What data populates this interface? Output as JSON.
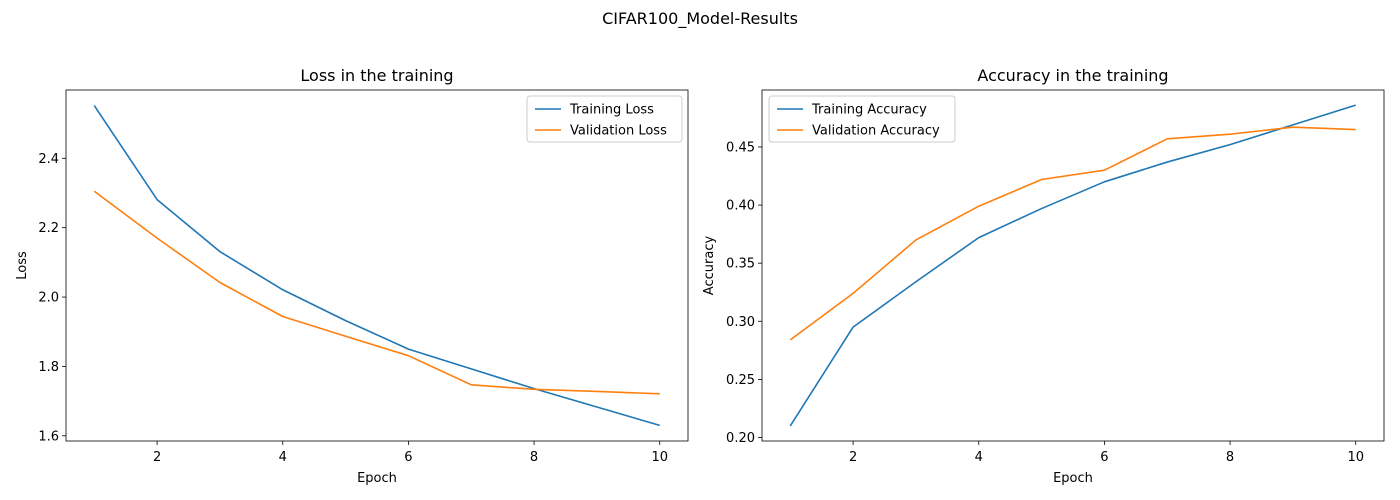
{
  "figure": {
    "title": "CIFAR100_Model-Results",
    "colors": {
      "train": "#1f77b4",
      "val": "#ff7f0e"
    }
  },
  "chart_data": [
    {
      "type": "line",
      "title": "Loss in the training",
      "xlabel": "Epoch",
      "ylabel": "Loss",
      "x": [
        1,
        2,
        3,
        4,
        5,
        6,
        7,
        8,
        9,
        10
      ],
      "xlim": [
        0.55,
        10.45
      ],
      "ylim": [
        1.585,
        2.597
      ],
      "xticks": [
        2,
        4,
        6,
        8,
        10
      ],
      "yticks": [
        1.6,
        1.8,
        2.0,
        2.2,
        2.4
      ],
      "ytick_decimals": 1,
      "legend": "top-right",
      "grid": false,
      "series": [
        {
          "name": "Training Loss",
          "color": "#1f77b4",
          "values": [
            2.552,
            2.281,
            2.131,
            2.021,
            1.932,
            1.85,
            1.793,
            1.736,
            1.683,
            1.63
          ]
        },
        {
          "name": "Validation Loss",
          "color": "#ff7f0e",
          "values": [
            2.305,
            2.17,
            2.042,
            1.944,
            1.887,
            1.831,
            1.747,
            1.734,
            1.728,
            1.721
          ]
        }
      ]
    },
    {
      "type": "line",
      "title": "Accuracy in the training",
      "xlabel": "Epoch",
      "ylabel": "Accuracy",
      "x": [
        1,
        2,
        3,
        4,
        5,
        6,
        7,
        8,
        9,
        10
      ],
      "xlim": [
        0.55,
        10.45
      ],
      "ylim": [
        0.197,
        0.499
      ],
      "xticks": [
        2,
        4,
        6,
        8,
        10
      ],
      "yticks": [
        0.2,
        0.25,
        0.3,
        0.35,
        0.4,
        0.45
      ],
      "ytick_decimals": 2,
      "legend": "top-left",
      "grid": false,
      "series": [
        {
          "name": "Training Accuracy",
          "color": "#1f77b4",
          "values": [
            0.21,
            0.295,
            0.334,
            0.372,
            0.397,
            0.42,
            0.437,
            0.452,
            0.469,
            0.486
          ]
        },
        {
          "name": "Validation Accuracy",
          "color": "#ff7f0e",
          "values": [
            0.284,
            0.324,
            0.37,
            0.399,
            0.422,
            0.43,
            0.457,
            0.461,
            0.467,
            0.465
          ]
        }
      ]
    }
  ]
}
